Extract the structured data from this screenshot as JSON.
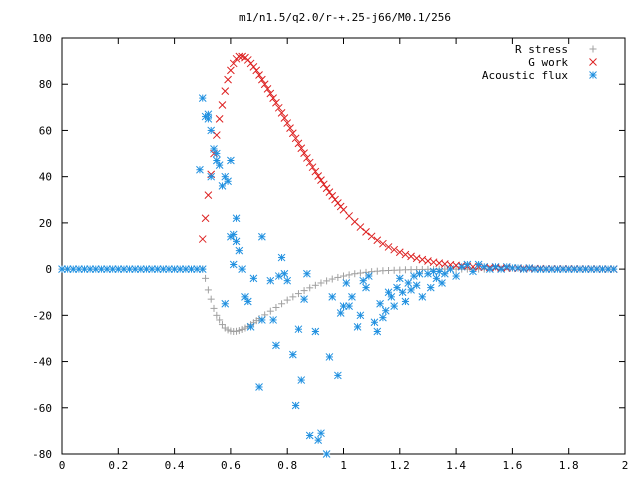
{
  "chart_data": {
    "type": "scatter",
    "title": "m1/n1.5/q2.0/r-+.25-j66/M0.1/256",
    "xlabel": "",
    "ylabel": "",
    "xlim": [
      0,
      2
    ],
    "ylim": [
      -80,
      100
    ],
    "x_ticks": [
      {
        "value": 0,
        "label": "0"
      },
      {
        "value": 0.2,
        "label": "0.2"
      },
      {
        "value": 0.4,
        "label": "0.4"
      },
      {
        "value": 0.6,
        "label": "0.6"
      },
      {
        "value": 0.8,
        "label": "0.8"
      },
      {
        "value": 1,
        "label": "1"
      },
      {
        "value": 1.2,
        "label": "1.2"
      },
      {
        "value": 1.4,
        "label": "1.4"
      },
      {
        "value": 1.6,
        "label": "1.6"
      },
      {
        "value": 1.8,
        "label": "1.8"
      },
      {
        "value": 2,
        "label": "2"
      }
    ],
    "y_ticks": [
      {
        "value": -80,
        "label": "-80"
      },
      {
        "value": -60,
        "label": "-60"
      },
      {
        "value": -40,
        "label": "-40"
      },
      {
        "value": -20,
        "label": "-20"
      },
      {
        "value": 0,
        "label": "0"
      },
      {
        "value": 20,
        "label": "20"
      },
      {
        "value": 40,
        "label": "40"
      },
      {
        "value": 60,
        "label": "60"
      },
      {
        "value": 80,
        "label": "80"
      },
      {
        "value": 100,
        "label": "100"
      }
    ],
    "grid": false,
    "legend_position": "top-right",
    "series": [
      {
        "name": "R stress",
        "marker": "plus",
        "color": "#a0a0a0",
        "points": [
          [
            0.5,
            0
          ],
          [
            0.51,
            -4
          ],
          [
            0.52,
            -9
          ],
          [
            0.53,
            -13
          ],
          [
            0.54,
            -17
          ],
          [
            0.55,
            -20
          ],
          [
            0.56,
            -22
          ],
          [
            0.57,
            -24
          ],
          [
            0.58,
            -25.5
          ],
          [
            0.59,
            -26.3
          ],
          [
            0.6,
            -26.8
          ],
          [
            0.61,
            -27
          ],
          [
            0.62,
            -26.9
          ],
          [
            0.63,
            -26.6
          ],
          [
            0.64,
            -26.1
          ],
          [
            0.65,
            -25.5
          ],
          [
            0.66,
            -24.8
          ],
          [
            0.67,
            -24
          ],
          [
            0.68,
            -23.2
          ],
          [
            0.69,
            -22.3
          ],
          [
            0.7,
            -21.4
          ],
          [
            0.72,
            -19.8
          ],
          [
            0.74,
            -18.2
          ],
          [
            0.76,
            -16.6
          ],
          [
            0.78,
            -15
          ],
          [
            0.8,
            -13.4
          ],
          [
            0.82,
            -12
          ],
          [
            0.84,
            -10.6
          ],
          [
            0.86,
            -9.3
          ],
          [
            0.88,
            -8.1
          ],
          [
            0.9,
            -7
          ],
          [
            0.92,
            -6
          ],
          [
            0.94,
            -5.1
          ],
          [
            0.96,
            -4.3
          ],
          [
            0.98,
            -3.6
          ],
          [
            1,
            -3
          ],
          [
            1.02,
            -2.5
          ],
          [
            1.04,
            -2
          ],
          [
            1.06,
            -1.7
          ],
          [
            1.08,
            -1.4
          ],
          [
            1.1,
            -1.1
          ],
          [
            1.12,
            -0.9
          ],
          [
            1.14,
            -0.7
          ],
          [
            1.16,
            -0.6
          ],
          [
            1.18,
            -0.5
          ],
          [
            1.2,
            -0.4
          ],
          [
            1.22,
            -0.3
          ],
          [
            1.24,
            -0.25
          ],
          [
            1.26,
            -0.2
          ],
          [
            1.28,
            -0.15
          ],
          [
            1.3,
            -0.1
          ],
          [
            1.32,
            -0.1
          ],
          [
            1.34,
            -0.05
          ],
          [
            1.36,
            0
          ],
          [
            1.38,
            0
          ],
          [
            1.4,
            0
          ],
          [
            1.42,
            0
          ],
          [
            1.44,
            0
          ],
          [
            1.46,
            0
          ],
          [
            1.48,
            0
          ],
          [
            1.5,
            0
          ]
        ]
      },
      {
        "name": "G work",
        "marker": "cross",
        "color": "#dd2020",
        "points": [
          [
            0.5,
            13
          ],
          [
            0.51,
            22
          ],
          [
            0.52,
            32
          ],
          [
            0.53,
            41
          ],
          [
            0.54,
            50
          ],
          [
            0.55,
            58
          ],
          [
            0.56,
            65
          ],
          [
            0.57,
            71
          ],
          [
            0.58,
            77
          ],
          [
            0.59,
            82
          ],
          [
            0.6,
            86
          ],
          [
            0.61,
            89
          ],
          [
            0.62,
            91
          ],
          [
            0.63,
            92
          ],
          [
            0.64,
            92
          ],
          [
            0.65,
            91.5
          ],
          [
            0.66,
            90.5
          ],
          [
            0.67,
            89
          ],
          [
            0.68,
            87.5
          ],
          [
            0.69,
            86
          ],
          [
            0.7,
            84
          ],
          [
            0.71,
            82
          ],
          [
            0.72,
            80
          ],
          [
            0.73,
            78
          ],
          [
            0.74,
            76
          ],
          [
            0.75,
            74
          ],
          [
            0.76,
            72
          ],
          [
            0.77,
            69.8
          ],
          [
            0.78,
            67.6
          ],
          [
            0.79,
            65.4
          ],
          [
            0.8,
            63.2
          ],
          [
            0.81,
            61
          ],
          [
            0.82,
            58.8
          ],
          [
            0.83,
            56.6
          ],
          [
            0.84,
            54.4
          ],
          [
            0.85,
            52.3
          ],
          [
            0.86,
            50.2
          ],
          [
            0.87,
            48.1
          ],
          [
            0.88,
            46.1
          ],
          [
            0.89,
            44.1
          ],
          [
            0.9,
            42.2
          ],
          [
            0.91,
            40.3
          ],
          [
            0.92,
            38.5
          ],
          [
            0.93,
            36.7
          ],
          [
            0.94,
            35
          ],
          [
            0.95,
            33.3
          ],
          [
            0.96,
            31.7
          ],
          [
            0.97,
            30.1
          ],
          [
            0.98,
            28.6
          ],
          [
            0.99,
            27.1
          ],
          [
            1,
            25.7
          ],
          [
            1.02,
            23
          ],
          [
            1.04,
            20.5
          ],
          [
            1.06,
            18.2
          ],
          [
            1.08,
            16.1
          ],
          [
            1.1,
            14.2
          ],
          [
            1.12,
            12.5
          ],
          [
            1.14,
            11
          ],
          [
            1.16,
            9.6
          ],
          [
            1.18,
            8.4
          ],
          [
            1.2,
            7.3
          ],
          [
            1.22,
            6.3
          ],
          [
            1.24,
            5.5
          ],
          [
            1.26,
            4.7
          ],
          [
            1.28,
            4.1
          ],
          [
            1.3,
            3.5
          ],
          [
            1.32,
            3
          ],
          [
            1.34,
            2.6
          ],
          [
            1.36,
            2.2
          ],
          [
            1.38,
            1.9
          ],
          [
            1.4,
            1.6
          ],
          [
            1.42,
            1.4
          ],
          [
            1.44,
            1.2
          ],
          [
            1.46,
            1
          ],
          [
            1.48,
            0.9
          ],
          [
            1.5,
            0.8
          ],
          [
            1.52,
            0.7
          ],
          [
            1.54,
            0.6
          ],
          [
            1.56,
            0.5
          ],
          [
            1.58,
            0.4
          ],
          [
            1.6,
            0.4
          ],
          [
            1.62,
            0.3
          ],
          [
            1.64,
            0.3
          ],
          [
            1.66,
            0.2
          ],
          [
            1.68,
            0.2
          ],
          [
            1.7,
            0.2
          ],
          [
            1.72,
            0.1
          ],
          [
            1.74,
            0.1
          ],
          [
            1.76,
            0.1
          ],
          [
            1.78,
            0.1
          ],
          [
            1.8,
            0.1
          ],
          [
            1.82,
            0.1
          ],
          [
            1.84,
            0.05
          ],
          [
            1.86,
            0.05
          ],
          [
            1.88,
            0.05
          ],
          [
            1.9,
            0.05
          ],
          [
            1.92,
            0
          ],
          [
            1.94,
            0
          ],
          [
            1.96,
            0
          ]
        ]
      },
      {
        "name": "Acoustic flux",
        "marker": "star",
        "color": "#2090e0",
        "points": [
          [
            0,
            0
          ],
          [
            0.02,
            0
          ],
          [
            0.04,
            0
          ],
          [
            0.06,
            0
          ],
          [
            0.08,
            0
          ],
          [
            0.1,
            0
          ],
          [
            0.12,
            0
          ],
          [
            0.14,
            0
          ],
          [
            0.16,
            0
          ],
          [
            0.18,
            0
          ],
          [
            0.2,
            0
          ],
          [
            0.22,
            0
          ],
          [
            0.24,
            0
          ],
          [
            0.26,
            0
          ],
          [
            0.28,
            0
          ],
          [
            0.3,
            0
          ],
          [
            0.32,
            0
          ],
          [
            0.34,
            0
          ],
          [
            0.36,
            0
          ],
          [
            0.38,
            0
          ],
          [
            0.4,
            0
          ],
          [
            0.42,
            0
          ],
          [
            0.44,
            0
          ],
          [
            0.46,
            0
          ],
          [
            0.48,
            0
          ],
          [
            0.5,
            0
          ],
          [
            0.49,
            43
          ],
          [
            0.5,
            74
          ],
          [
            0.51,
            66
          ],
          [
            0.52,
            67
          ],
          [
            0.52,
            65
          ],
          [
            0.53,
            60
          ],
          [
            0.53,
            40
          ],
          [
            0.54,
            52
          ],
          [
            0.55,
            47
          ],
          [
            0.55,
            50
          ],
          [
            0.56,
            45
          ],
          [
            0.57,
            36
          ],
          [
            0.58,
            40
          ],
          [
            0.59,
            38
          ],
          [
            0.6,
            47
          ],
          [
            0.58,
            -15
          ],
          [
            0.6,
            14
          ],
          [
            0.61,
            15
          ],
          [
            0.61,
            2
          ],
          [
            0.62,
            22
          ],
          [
            0.62,
            12
          ],
          [
            0.63,
            8
          ],
          [
            0.64,
            0
          ],
          [
            0.65,
            -12
          ],
          [
            0.66,
            -14
          ],
          [
            0.67,
            -25
          ],
          [
            0.68,
            -4
          ],
          [
            0.7,
            -51
          ],
          [
            0.71,
            -22
          ],
          [
            0.71,
            14
          ],
          [
            0.74,
            -5
          ],
          [
            0.75,
            -22
          ],
          [
            0.76,
            -33
          ],
          [
            0.77,
            -3
          ],
          [
            0.78,
            5
          ],
          [
            0.79,
            -2
          ],
          [
            0.8,
            -5
          ],
          [
            0.82,
            -37
          ],
          [
            0.83,
            -59
          ],
          [
            0.84,
            -26
          ],
          [
            0.85,
            -48
          ],
          [
            0.86,
            -13
          ],
          [
            0.87,
            -2
          ],
          [
            0.88,
            -72
          ],
          [
            0.9,
            -27
          ],
          [
            0.91,
            -74
          ],
          [
            0.92,
            -71
          ],
          [
            0.94,
            -80
          ],
          [
            0.95,
            -38
          ],
          [
            0.96,
            -12
          ],
          [
            0.98,
            -46
          ],
          [
            0.99,
            -19
          ],
          [
            1,
            -16
          ],
          [
            1.01,
            -6
          ],
          [
            1.02,
            -16
          ],
          [
            1.03,
            -12
          ],
          [
            1.05,
            -25
          ],
          [
            1.06,
            -20
          ],
          [
            1.07,
            -5
          ],
          [
            1.08,
            -8
          ],
          [
            1.09,
            -3
          ],
          [
            1.11,
            -23
          ],
          [
            1.12,
            -27
          ],
          [
            1.13,
            -15
          ],
          [
            1.14,
            -21
          ],
          [
            1.15,
            -18
          ],
          [
            1.16,
            -10
          ],
          [
            1.17,
            -12
          ],
          [
            1.18,
            -16
          ],
          [
            1.19,
            -8
          ],
          [
            1.2,
            -4
          ],
          [
            1.21,
            -10
          ],
          [
            1.22,
            -14
          ],
          [
            1.23,
            -6
          ],
          [
            1.24,
            -9
          ],
          [
            1.25,
            -3
          ],
          [
            1.26,
            -7
          ],
          [
            1.27,
            -2
          ],
          [
            1.28,
            -12
          ],
          [
            1.3,
            -2
          ],
          [
            1.31,
            -8
          ],
          [
            1.32,
            -1
          ],
          [
            1.33,
            -4
          ],
          [
            1.34,
            -1
          ],
          [
            1.35,
            -6
          ],
          [
            1.36,
            -2
          ],
          [
            1.38,
            0
          ],
          [
            1.4,
            -3
          ],
          [
            1.42,
            1
          ],
          [
            1.44,
            2
          ],
          [
            1.46,
            -1
          ],
          [
            1.48,
            2
          ],
          [
            1.5,
            1
          ],
          [
            1.52,
            0
          ],
          [
            1.54,
            1
          ],
          [
            1.56,
            0
          ],
          [
            1.58,
            1
          ],
          [
            1.6,
            0.5
          ],
          [
            1.62,
            0.5
          ],
          [
            1.64,
            0
          ],
          [
            1.66,
            0.5
          ],
          [
            1.68,
            0
          ],
          [
            1.7,
            0
          ],
          [
            1.72,
            0
          ],
          [
            1.74,
            0
          ],
          [
            1.76,
            0
          ],
          [
            1.78,
            0
          ],
          [
            1.8,
            0
          ],
          [
            1.82,
            0
          ],
          [
            1.84,
            0
          ],
          [
            1.86,
            0
          ],
          [
            1.88,
            0
          ],
          [
            1.9,
            0
          ],
          [
            1.92,
            0
          ],
          [
            1.94,
            0
          ],
          [
            1.96,
            0
          ]
        ]
      }
    ]
  }
}
